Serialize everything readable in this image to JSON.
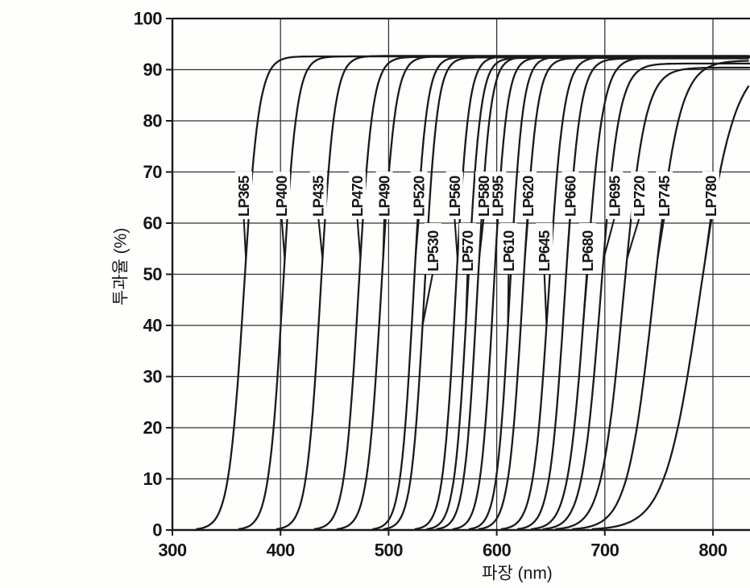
{
  "chart_data": {
    "type": "line",
    "title": "",
    "xlabel": "파장 (nm)",
    "ylabel": "투과율 (%)",
    "xlim": [
      300,
      834
    ],
    "ylim": [
      0,
      100
    ],
    "x_ticks": [
      300,
      400,
      500,
      600,
      700,
      800
    ],
    "y_ticks": [
      0,
      10,
      20,
      30,
      40,
      50,
      60,
      70,
      80,
      90,
      100
    ],
    "grid": true,
    "legend": "inline-labels",
    "ink_color": "#1a1a1a",
    "grid_color": "#2e2e2e",
    "background_color": "#fefefd",
    "curve_model": "logistic: T(nm) = plateau / (1 + exp(-(nm - lambda50)/width))",
    "series": [
      {
        "label": "LP365",
        "cuton_nm": 365,
        "lambda50": 366,
        "width": 7.0,
        "plateau": 92.6,
        "label_row": "upper",
        "label_nm": 366
      },
      {
        "label": "LP400",
        "cuton_nm": 400,
        "lambda50": 402,
        "width": 6.5,
        "plateau": 92.6,
        "label_row": "upper",
        "label_nm": 401
      },
      {
        "label": "LP435",
        "cuton_nm": 435,
        "lambda50": 437,
        "width": 6.5,
        "plateau": 92.7,
        "label_row": "upper",
        "label_nm": 435
      },
      {
        "label": "LP470",
        "cuton_nm": 470,
        "lambda50": 472,
        "width": 6.5,
        "plateau": 92.5,
        "label_row": "upper",
        "label_nm": 471
      },
      {
        "label": "LP490",
        "cuton_nm": 490,
        "lambda50": 493,
        "width": 6.5,
        "plateau": 92.6,
        "label_row": "upper",
        "label_nm": 496
      },
      {
        "label": "LP520",
        "cuton_nm": 520,
        "lambda50": 523,
        "width": 6.0,
        "plateau": 92.5,
        "label_row": "upper",
        "label_nm": 528
      },
      {
        "label": "LP530",
        "cuton_nm": 530,
        "lambda50": 533,
        "width": 6.0,
        "plateau": 92.4,
        "label_row": "lower",
        "label_nm": 541
      },
      {
        "label": "LP560",
        "cuton_nm": 560,
        "lambda50": 562,
        "width": 6.0,
        "plateau": 92.6,
        "label_row": "upper",
        "label_nm": 561
      },
      {
        "label": "LP570",
        "cuton_nm": 570,
        "lambda50": 573,
        "width": 6.0,
        "plateau": 92.3,
        "label_row": "lower",
        "label_nm": 573
      },
      {
        "label": "LP580",
        "cuton_nm": 580,
        "lambda50": 582,
        "width": 6.0,
        "plateau": 92.5,
        "label_row": "upper",
        "label_nm": 588
      },
      {
        "label": "LP595",
        "cuton_nm": 595,
        "lambda50": 597,
        "width": 6.0,
        "plateau": 92.4,
        "label_row": "upper",
        "label_nm": 601
      },
      {
        "label": "LP610",
        "cuton_nm": 610,
        "lambda50": 612,
        "width": 6.0,
        "plateau": 92.5,
        "label_row": "lower",
        "label_nm": 611
      },
      {
        "label": "LP620",
        "cuton_nm": 620,
        "lambda50": 624,
        "width": 6.5,
        "plateau": 92.3,
        "label_row": "upper",
        "label_nm": 629
      },
      {
        "label": "LP645",
        "cuton_nm": 645,
        "lambda50": 648,
        "width": 7.0,
        "plateau": 92.5,
        "label_row": "lower",
        "label_nm": 644
      },
      {
        "label": "LP660",
        "cuton_nm": 660,
        "lambda50": 663,
        "width": 7.0,
        "plateau": 92.2,
        "label_row": "upper",
        "label_nm": 668
      },
      {
        "label": "LP680",
        "cuton_nm": 680,
        "lambda50": 682,
        "width": 8.0,
        "plateau": 92.4,
        "label_row": "lower",
        "label_nm": 684
      },
      {
        "label": "LP695",
        "cuton_nm": 695,
        "lambda50": 696,
        "width": 8.5,
        "plateau": 91.2,
        "label_row": "upper",
        "label_nm": 709
      },
      {
        "label": "LP720",
        "cuton_nm": 720,
        "lambda50": 717,
        "width": 10.0,
        "plateau": 90.4,
        "label_row": "upper",
        "label_nm": 732
      },
      {
        "label": "LP745",
        "cuton_nm": 745,
        "lambda50": 745,
        "width": 12.0,
        "plateau": 91.8,
        "label_row": "upper",
        "label_nm": 755
      },
      {
        "label": "LP780",
        "cuton_nm": 780,
        "lambda50": 788,
        "width": 16.0,
        "plateau": 92.0,
        "label_row": "upper",
        "label_nm": 798
      }
    ]
  }
}
